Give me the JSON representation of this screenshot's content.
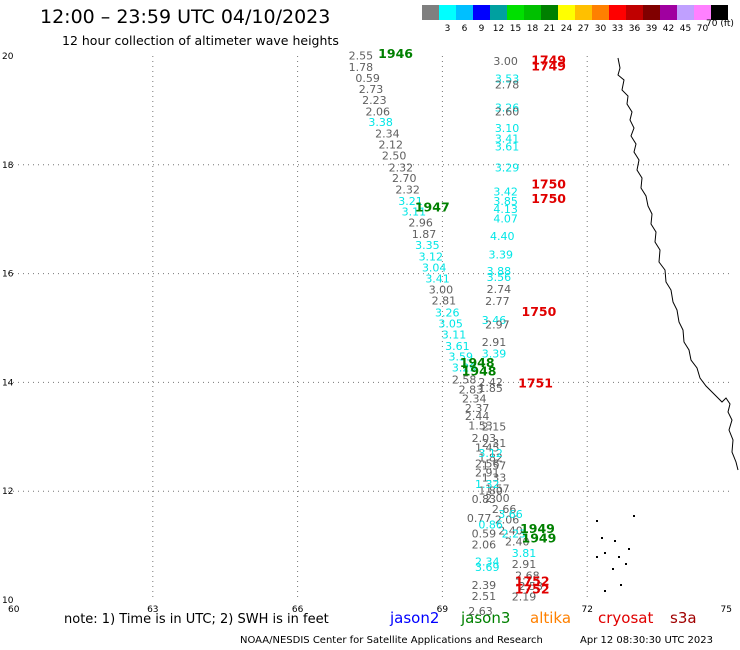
{
  "header": {
    "title": "12:00 – 23:59 UTC 04/10/2023",
    "subtitle": "12 hour collection of altimeter wave heights"
  },
  "color_scale": {
    "unit": "70 (ft)",
    "swatches": [
      {
        "color": "#7f7f7f",
        "label": ""
      },
      {
        "color": "#00ffff",
        "label": "3"
      },
      {
        "color": "#00bfff",
        "label": "6"
      },
      {
        "color": "#0000ff",
        "label": "9"
      },
      {
        "color": "#00a0a0",
        "label": "12"
      },
      {
        "color": "#00e000",
        "label": "15"
      },
      {
        "color": "#00c000",
        "label": "18"
      },
      {
        "color": "#008000",
        "label": "21"
      },
      {
        "color": "#ffff00",
        "label": "24"
      },
      {
        "color": "#ffc000",
        "label": "27"
      },
      {
        "color": "#ff8000",
        "label": "30"
      },
      {
        "color": "#ff0000",
        "label": "33"
      },
      {
        "color": "#c00000",
        "label": "36"
      },
      {
        "color": "#800000",
        "label": "39"
      },
      {
        "color": "#a000a0",
        "label": "42"
      },
      {
        "color": "#c0a0ff",
        "label": "45"
      },
      {
        "color": "#ff80ff",
        "label": "70"
      },
      {
        "color": "#000000",
        "label": ""
      }
    ]
  },
  "axes": {
    "x_ticks": [
      "60",
      "63",
      "66",
      "69",
      "72",
      "75"
    ],
    "y_ticks": [
      "10",
      "12",
      "14",
      "16",
      "18",
      "20"
    ]
  },
  "chart_data": {
    "type": "scatter",
    "x_range": [
      60,
      75
    ],
    "y_range": [
      10,
      20
    ],
    "grid": true,
    "grid_x": [
      63,
      66,
      69,
      72
    ],
    "grid_y": [
      12,
      14,
      16,
      18
    ],
    "colors": {
      "gray": "#606060",
      "cyan": "#00e6e6",
      "green": "#008000",
      "red": "#e00000"
    },
    "points": [
      {
        "x": 67.31,
        "y": 19.94,
        "v": "2.55",
        "c": "gray"
      },
      {
        "x": 67.31,
        "y": 19.72,
        "v": "1.78",
        "c": "gray"
      },
      {
        "x": 67.45,
        "y": 19.52,
        "v": "0.59",
        "c": "gray"
      },
      {
        "x": 67.52,
        "y": 19.32,
        "v": "2.73",
        "c": "gray"
      },
      {
        "x": 67.59,
        "y": 19.12,
        "v": "2.23",
        "c": "gray"
      },
      {
        "x": 67.66,
        "y": 18.91,
        "v": "2.06",
        "c": "gray"
      },
      {
        "x": 67.72,
        "y": 18.71,
        "v": "3.38",
        "c": "cyan"
      },
      {
        "x": 67.86,
        "y": 18.5,
        "v": "2.34",
        "c": "gray"
      },
      {
        "x": 67.93,
        "y": 18.3,
        "v": "2.12",
        "c": "gray"
      },
      {
        "x": 68.0,
        "y": 18.1,
        "v": "2.50",
        "c": "gray"
      },
      {
        "x": 68.14,
        "y": 17.88,
        "v": "2.32",
        "c": "gray"
      },
      {
        "x": 68.21,
        "y": 17.68,
        "v": "2.70",
        "c": "gray"
      },
      {
        "x": 68.28,
        "y": 17.47,
        "v": "2.32",
        "c": "gray"
      },
      {
        "x": 68.34,
        "y": 17.26,
        "v": "3.21",
        "c": "cyan"
      },
      {
        "x": 68.41,
        "y": 17.07,
        "v": "3.11",
        "c": "cyan"
      },
      {
        "x": 68.55,
        "y": 16.87,
        "v": "2.96",
        "c": "gray"
      },
      {
        "x": 68.62,
        "y": 16.65,
        "v": "1.87",
        "c": "gray"
      },
      {
        "x": 68.69,
        "y": 16.45,
        "v": "3.35",
        "c": "cyan"
      },
      {
        "x": 68.76,
        "y": 16.24,
        "v": "3.12",
        "c": "cyan"
      },
      {
        "x": 68.83,
        "y": 16.04,
        "v": "3.04",
        "c": "cyan"
      },
      {
        "x": 68.9,
        "y": 15.84,
        "v": "3.41",
        "c": "cyan"
      },
      {
        "x": 68.97,
        "y": 15.63,
        "v": "3.00",
        "c": "gray"
      },
      {
        "x": 69.03,
        "y": 15.43,
        "v": "2.81",
        "c": "gray"
      },
      {
        "x": 69.1,
        "y": 15.21,
        "v": "3.26",
        "c": "cyan"
      },
      {
        "x": 69.17,
        "y": 15.01,
        "v": "3.05",
        "c": "cyan"
      },
      {
        "x": 69.24,
        "y": 14.81,
        "v": "3.11",
        "c": "cyan"
      },
      {
        "x": 69.31,
        "y": 14.6,
        "v": "3.61",
        "c": "cyan"
      },
      {
        "x": 69.38,
        "y": 14.4,
        "v": "3.59",
        "c": "cyan"
      },
      {
        "x": 69.45,
        "y": 14.2,
        "v": "3.29",
        "c": "cyan"
      },
      {
        "x": 69.45,
        "y": 13.98,
        "v": "2.58",
        "c": "gray"
      },
      {
        "x": 69.59,
        "y": 13.8,
        "v": "2.83",
        "c": "gray"
      },
      {
        "x": 69.66,
        "y": 13.63,
        "v": "2.34",
        "c": "gray"
      },
      {
        "x": 69.72,
        "y": 13.46,
        "v": "2.37",
        "c": "gray"
      },
      {
        "x": 69.72,
        "y": 13.31,
        "v": "2.44",
        "c": "gray"
      },
      {
        "x": 69.79,
        "y": 13.13,
        "v": "1.53",
        "c": "gray"
      },
      {
        "x": 69.86,
        "y": 12.9,
        "v": "2.03",
        "c": "gray"
      },
      {
        "x": 69.93,
        "y": 12.73,
        "v": "1.45",
        "c": "gray"
      },
      {
        "x": 70.0,
        "y": 12.55,
        "v": "1.82",
        "c": "gray"
      },
      {
        "x": 70.07,
        "y": 12.4,
        "v": "1.57",
        "c": "gray"
      },
      {
        "x": 70.07,
        "y": 12.18,
        "v": "1.33",
        "c": "gray"
      },
      {
        "x": 70.14,
        "y": 11.98,
        "v": "1.57",
        "c": "gray"
      },
      {
        "x": 70.14,
        "y": 11.8,
        "v": "2.00",
        "c": "gray"
      },
      {
        "x": 70.28,
        "y": 11.6,
        "v": "2.66",
        "c": "gray"
      },
      {
        "x": 70.34,
        "y": 11.41,
        "v": "2.06",
        "c": "gray"
      },
      {
        "x": 70.41,
        "y": 11.2,
        "v": "2.40",
        "c": "gray"
      },
      {
        "x": 70.55,
        "y": 11.0,
        "v": "2.40",
        "c": "gray"
      },
      {
        "x": 70.69,
        "y": 10.79,
        "v": "3.81",
        "c": "cyan"
      },
      {
        "x": 70.69,
        "y": 10.59,
        "v": "2.91",
        "c": "gray"
      },
      {
        "x": 70.76,
        "y": 10.38,
        "v": "2.68",
        "c": "gray"
      },
      {
        "x": 70.83,
        "y": 10.18,
        "v": "2.53",
        "c": "gray"
      },
      {
        "x": 70.31,
        "y": 19.83,
        "v": "3.00",
        "c": "gray"
      },
      {
        "x": 70.34,
        "y": 19.51,
        "v": "3.53",
        "c": "cyan"
      },
      {
        "x": 70.34,
        "y": 19.4,
        "v": "2.78",
        "c": "gray"
      },
      {
        "x": 70.34,
        "y": 18.98,
        "v": "3.26",
        "c": "cyan"
      },
      {
        "x": 70.34,
        "y": 18.91,
        "v": "2.60",
        "c": "gray"
      },
      {
        "x": 70.34,
        "y": 18.6,
        "v": "3.10",
        "c": "cyan"
      },
      {
        "x": 70.34,
        "y": 18.41,
        "v": "3.41",
        "c": "cyan"
      },
      {
        "x": 70.34,
        "y": 18.26,
        "v": "3.61",
        "c": "cyan"
      },
      {
        "x": 70.34,
        "y": 17.88,
        "v": "3.29",
        "c": "cyan"
      },
      {
        "x": 70.31,
        "y": 17.44,
        "v": "3.42",
        "c": "cyan"
      },
      {
        "x": 70.31,
        "y": 17.26,
        "v": "3.85",
        "c": "cyan"
      },
      {
        "x": 70.31,
        "y": 17.11,
        "v": "4.13",
        "c": "cyan"
      },
      {
        "x": 70.31,
        "y": 16.94,
        "v": "4.07",
        "c": "cyan"
      },
      {
        "x": 70.24,
        "y": 16.62,
        "v": "4.40",
        "c": "cyan"
      },
      {
        "x": 70.21,
        "y": 16.28,
        "v": "3.39",
        "c": "cyan"
      },
      {
        "x": 70.17,
        "y": 15.97,
        "v": "3.88",
        "c": "cyan"
      },
      {
        "x": 70.17,
        "y": 15.86,
        "v": "3.56",
        "c": "cyan"
      },
      {
        "x": 70.17,
        "y": 15.64,
        "v": "2.74",
        "c": "gray"
      },
      {
        "x": 70.14,
        "y": 15.42,
        "v": "2.77",
        "c": "gray"
      },
      {
        "x": 70.07,
        "y": 15.07,
        "v": "3.46",
        "c": "cyan"
      },
      {
        "x": 70.14,
        "y": 14.99,
        "v": "2.97",
        "c": "gray"
      },
      {
        "x": 70.07,
        "y": 14.67,
        "v": "2.91",
        "c": "gray"
      },
      {
        "x": 70.07,
        "y": 14.46,
        "v": "3.39",
        "c": "cyan"
      },
      {
        "x": 70.0,
        "y": 13.93,
        "v": "2.42",
        "c": "gray"
      },
      {
        "x": 70.0,
        "y": 13.82,
        "v": "1.85",
        "c": "gray"
      },
      {
        "x": 70.07,
        "y": 13.12,
        "v": "2.15",
        "c": "gray"
      },
      {
        "x": 70.07,
        "y": 12.81,
        "v": "2.31",
        "c": "gray"
      },
      {
        "x": 70.0,
        "y": 12.63,
        "v": "3.12",
        "c": "cyan"
      },
      {
        "x": 69.93,
        "y": 12.44,
        "v": "2.56",
        "c": "gray"
      },
      {
        "x": 69.93,
        "y": 12.27,
        "v": "2.91",
        "c": "gray"
      },
      {
        "x": 70.0,
        "y": 11.94,
        "v": "1.80",
        "c": "gray"
      },
      {
        "x": 69.86,
        "y": 11.78,
        "v": "0.83",
        "c": "gray"
      },
      {
        "x": 69.76,
        "y": 11.43,
        "v": "0.77",
        "c": "gray"
      },
      {
        "x": 69.86,
        "y": 11.15,
        "v": "0.59",
        "c": "gray"
      },
      {
        "x": 69.86,
        "y": 10.95,
        "v": "2.06",
        "c": "gray"
      },
      {
        "x": 69.93,
        "y": 10.63,
        "v": "2.34",
        "c": "cyan"
      },
      {
        "x": 69.93,
        "y": 10.53,
        "v": "3.69",
        "c": "cyan"
      },
      {
        "x": 69.86,
        "y": 10.2,
        "v": "2.39",
        "c": "gray"
      },
      {
        "x": 69.86,
        "y": 10.0,
        "v": "2.51",
        "c": "gray"
      },
      {
        "x": 69.79,
        "y": 9.72,
        "v": "2.63",
        "c": "gray"
      },
      {
        "x": 70.69,
        "y": 9.99,
        "v": "2.19",
        "c": "gray"
      },
      {
        "x": 70.48,
        "y": 11.15,
        "v": "2.23",
        "c": "cyan"
      },
      {
        "x": 70.41,
        "y": 11.51,
        "v": "3.66",
        "c": "cyan"
      },
      {
        "x": 70.0,
        "y": 11.31,
        "v": "0.86",
        "c": "cyan"
      },
      {
        "x": 69.93,
        "y": 12.06,
        "v": "1.32",
        "c": "cyan"
      }
    ],
    "time_labels": [
      {
        "x": 68.03,
        "y": 19.96,
        "t": "1946",
        "c": "green"
      },
      {
        "x": 68.79,
        "y": 17.14,
        "t": "1947",
        "c": "green"
      },
      {
        "x": 69.72,
        "y": 14.28,
        "t": "1948",
        "c": "green"
      },
      {
        "x": 69.76,
        "y": 14.13,
        "t": "1948",
        "c": "green"
      },
      {
        "x": 70.97,
        "y": 11.23,
        "t": "1949",
        "c": "green"
      },
      {
        "x": 71.0,
        "y": 11.06,
        "t": "1949",
        "c": "green"
      },
      {
        "x": 71.2,
        "y": 19.84,
        "t": "1749",
        "c": "red"
      },
      {
        "x": 71.2,
        "y": 19.73,
        "t": "1749",
        "c": "red"
      },
      {
        "x": 71.2,
        "y": 17.56,
        "t": "1750",
        "c": "red"
      },
      {
        "x": 71.2,
        "y": 17.3,
        "t": "1750",
        "c": "red"
      },
      {
        "x": 71.0,
        "y": 15.22,
        "t": "1750",
        "c": "red"
      },
      {
        "x": 70.93,
        "y": 13.91,
        "t": "1751",
        "c": "red"
      },
      {
        "x": 70.86,
        "y": 10.27,
        "t": "1752",
        "c": "red"
      },
      {
        "x": 70.86,
        "y": 10.12,
        "t": "1752",
        "c": "red"
      }
    ]
  },
  "footer": {
    "note": "note:  1) Time is in UTC;  2) SWH is in feet",
    "satellites": [
      {
        "name": "jason2",
        "color": "#0000ff"
      },
      {
        "name": "jason3",
        "color": "#008000"
      },
      {
        "name": "altika",
        "color": "#ff8000"
      },
      {
        "name": "cryosat",
        "color": "#e00000"
      },
      {
        "name": "s3a",
        "color": "#a00000"
      }
    ],
    "credit": "NOAA/NESDIS Center for Satellite Applications and Research",
    "generated": "Apr 12 08:30:30 UTC 2023"
  }
}
